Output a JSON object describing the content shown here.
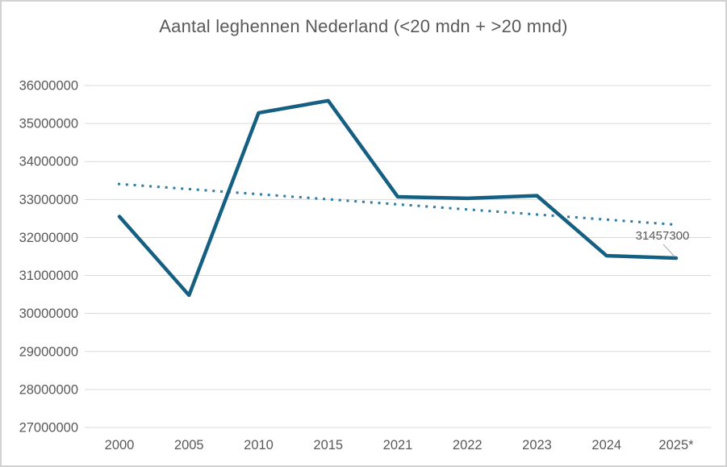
{
  "chart_data": {
    "type": "line",
    "title": "Aantal leghennen Nederland (<20 mdn + >20 mnd)",
    "categories": [
      "2000",
      "2005",
      "2010",
      "2015",
      "2021",
      "2022",
      "2023",
      "2024",
      "2025*"
    ],
    "series": [
      {
        "name": "Aantal leghennen",
        "values": [
          32550000,
          30480000,
          35280000,
          35600000,
          33070000,
          33030000,
          33100000,
          31520000,
          31457300
        ],
        "color": "#156082"
      }
    ],
    "trendline": {
      "style": "dotted",
      "color": "#2E7CA3",
      "start_value": 33410000,
      "end_value": 32340000
    },
    "data_labels": [
      {
        "category": "2025*",
        "text": "31457300"
      }
    ],
    "ylim": [
      27000000,
      36000000
    ],
    "ytick_labels": [
      "36000000",
      "35000000",
      "34000000",
      "33000000",
      "32000000",
      "31000000",
      "30000000",
      "29000000",
      "28000000",
      "27000000"
    ],
    "xlabel": "",
    "ylabel": "",
    "grid": true,
    "legend": false,
    "colors": {
      "grid": "#D9D9D9",
      "tick_text": "#595959",
      "title_text": "#595959",
      "data_label_text": "#595959",
      "leader_line": "#A6A6A6",
      "border": "#D2D2D2",
      "background": "#FFFFFF"
    }
  }
}
